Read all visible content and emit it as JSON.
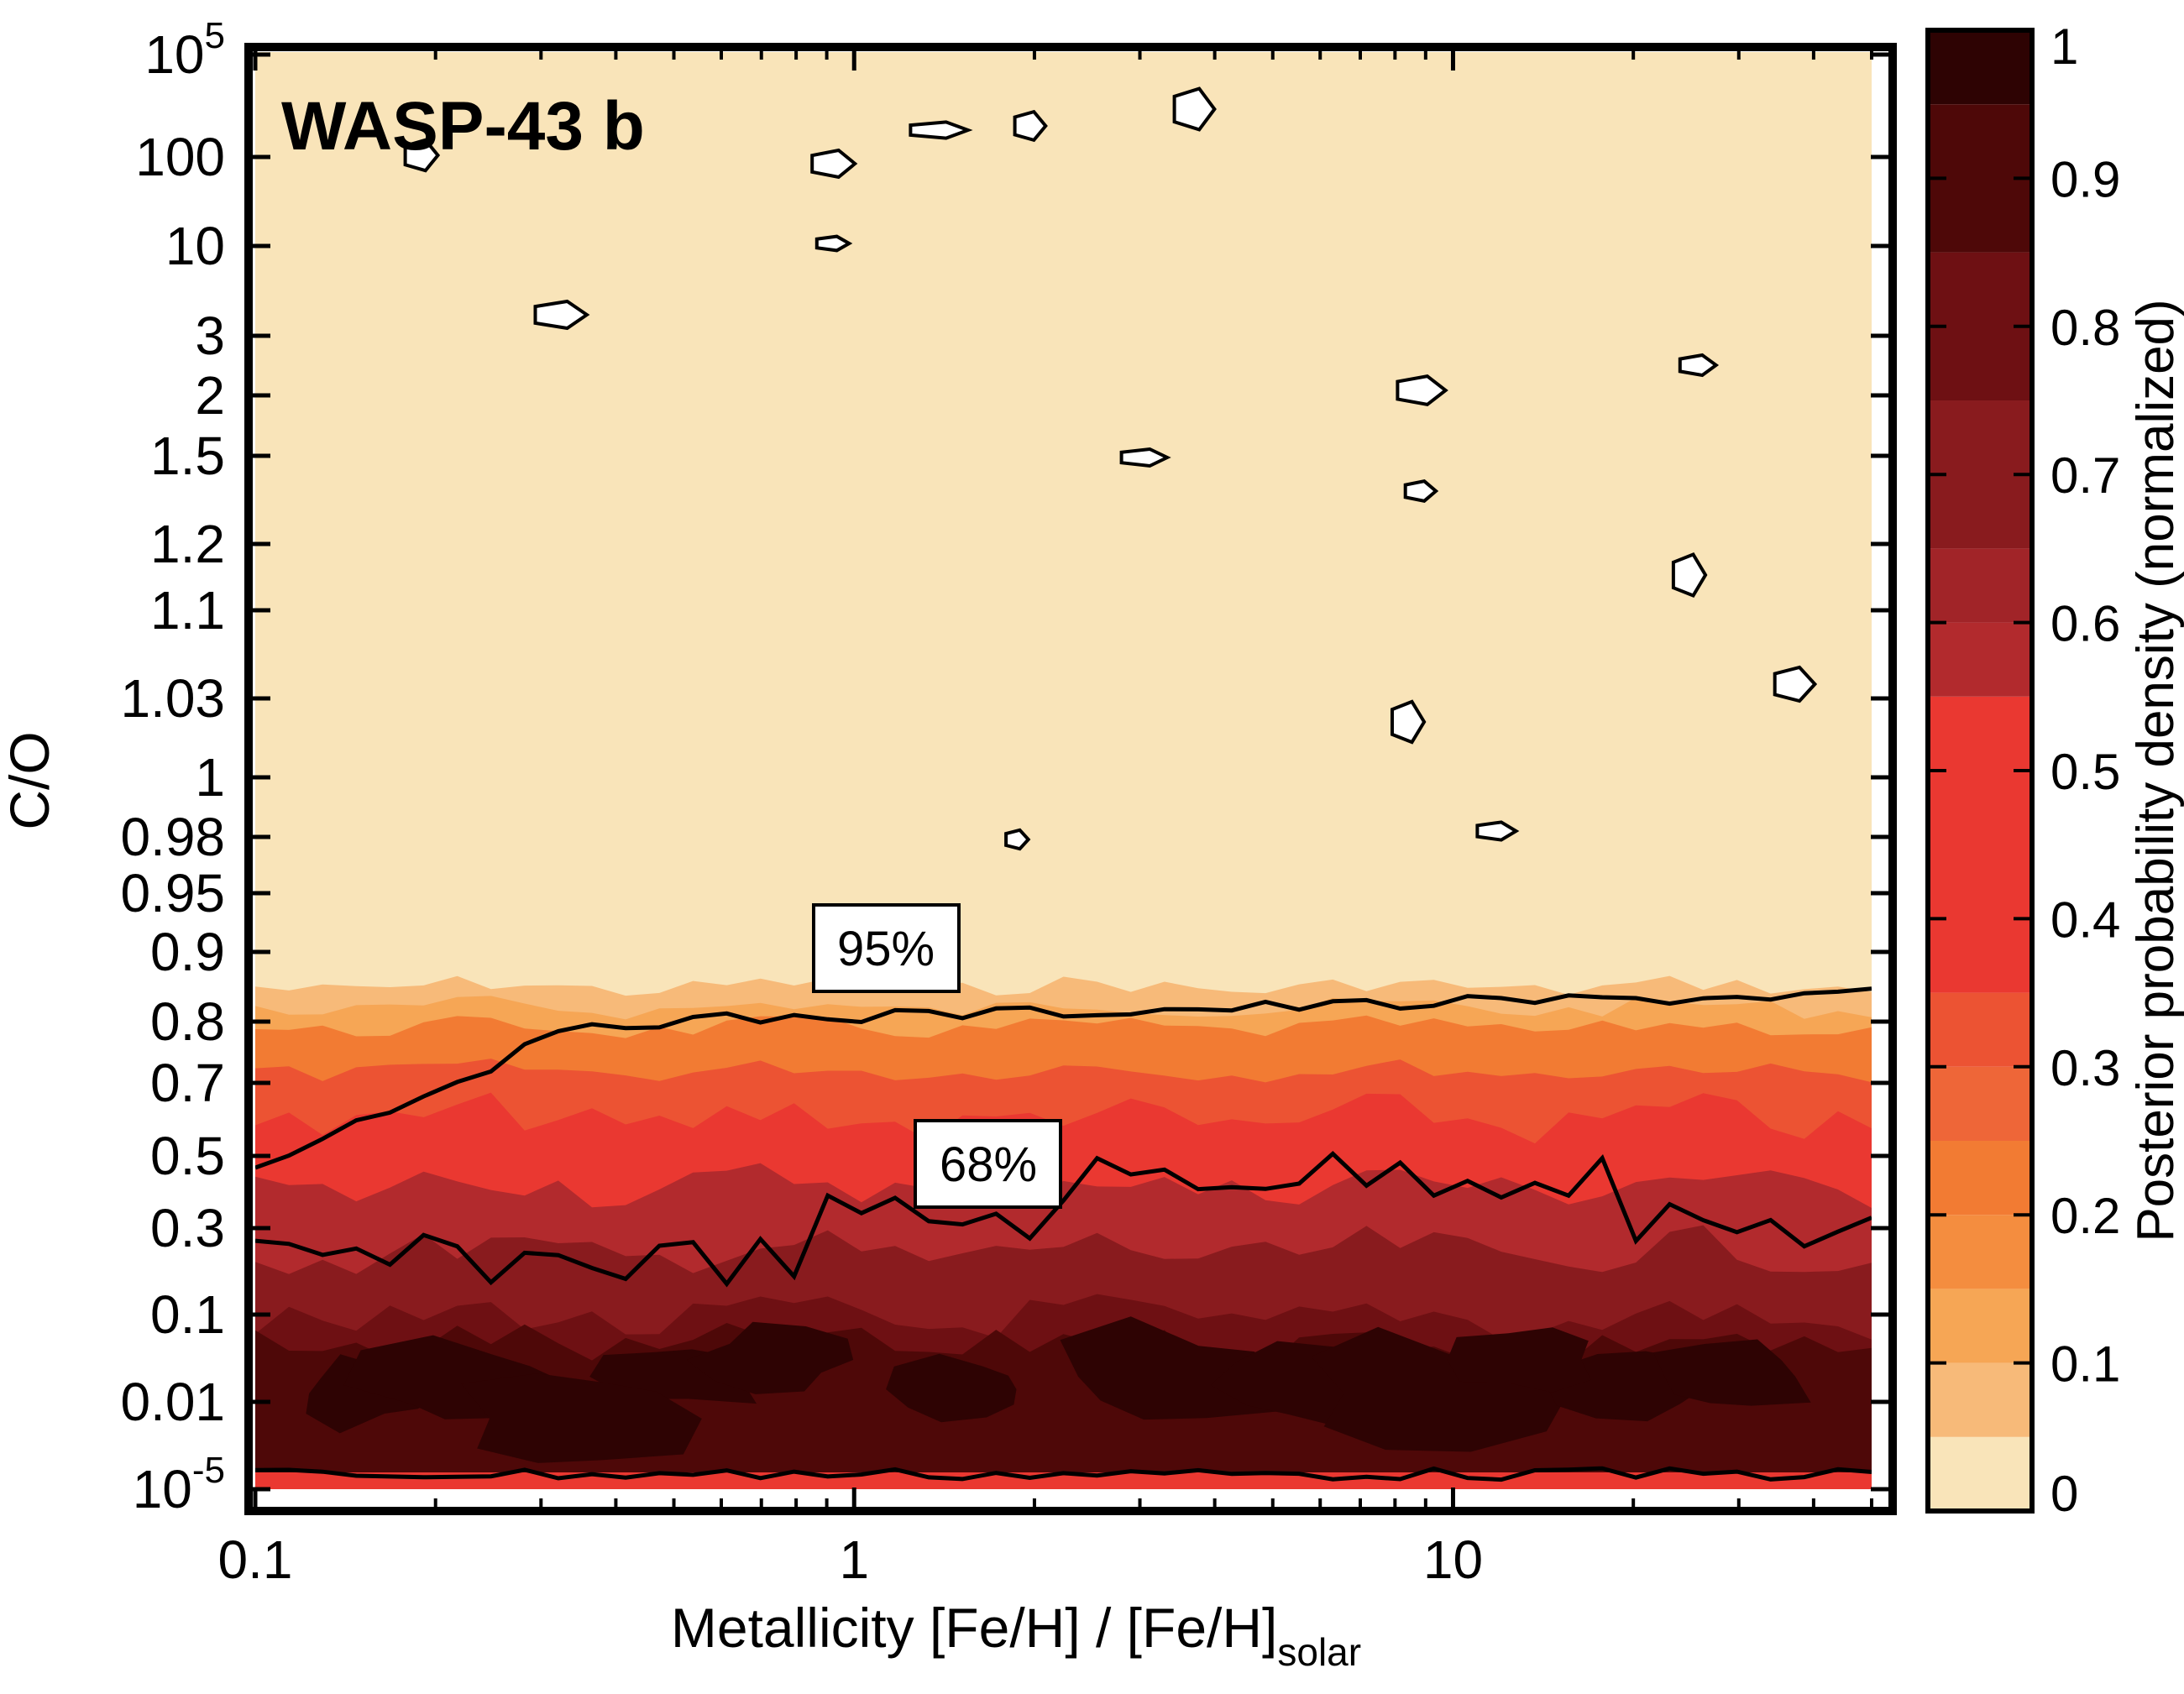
{
  "chart_data": {
    "type": "heatmap",
    "title": "WASP-43 b",
    "xlabel_main": "Metallicity [Fe/H] / [Fe/H]",
    "xlabel_sub": "solar",
    "ylabel": "C/O",
    "x_scale": "log",
    "xlim": [
      0.1,
      50
    ],
    "x_ticks": [
      {
        "value": 0.1,
        "label": "0.1"
      },
      {
        "value": 1,
        "label": "1"
      },
      {
        "value": 10,
        "label": "10"
      }
    ],
    "y_scale": "nonlinear (tick-indexed)",
    "y_ticks": [
      {
        "base": "10",
        "exp": "-5"
      },
      {
        "label": "0.01"
      },
      {
        "label": "0.1"
      },
      {
        "label": "0.3"
      },
      {
        "label": "0.5"
      },
      {
        "label": "0.7"
      },
      {
        "label": "0.8"
      },
      {
        "label": "0.9"
      },
      {
        "label": "0.95"
      },
      {
        "label": "0.98"
      },
      {
        "label": "1"
      },
      {
        "label": "1.03"
      },
      {
        "label": "1.1"
      },
      {
        "label": "1.2"
      },
      {
        "label": "1.5"
      },
      {
        "label": "2"
      },
      {
        "label": "3"
      },
      {
        "label": "10"
      },
      {
        "label": "100"
      },
      {
        "base": "10",
        "exp": "5"
      }
    ],
    "colorbar": {
      "title": "Posterior probability density (normalized)",
      "range": [
        0,
        1
      ],
      "ticks": [
        {
          "value": 0,
          "label": "0"
        },
        {
          "value": 0.1,
          "label": "0.1"
        },
        {
          "value": 0.2,
          "label": "0.2"
        },
        {
          "value": 0.3,
          "label": "0.3"
        },
        {
          "value": 0.4,
          "label": "0.4"
        },
        {
          "value": 0.5,
          "label": "0.5"
        },
        {
          "value": 0.6,
          "label": "0.6"
        },
        {
          "value": 0.7,
          "label": "0.7"
        },
        {
          "value": 0.8,
          "label": "0.8"
        },
        {
          "value": 0.9,
          "label": "0.9"
        },
        {
          "value": 1,
          "label": "1"
        }
      ],
      "levels": [
        {
          "from": 0.0,
          "to": 0.05,
          "color": "#f9e4b9"
        },
        {
          "from": 0.05,
          "to": 0.1,
          "color": "#f7ba79"
        },
        {
          "from": 0.1,
          "to": 0.15,
          "color": "#f6a655"
        },
        {
          "from": 0.15,
          "to": 0.2,
          "color": "#f48d3f"
        },
        {
          "from": 0.2,
          "to": 0.25,
          "color": "#f27b33"
        },
        {
          "from": 0.25,
          "to": 0.3,
          "color": "#ee6638"
        },
        {
          "from": 0.3,
          "to": 0.35,
          "color": "#ec5333"
        },
        {
          "from": 0.35,
          "to": 0.55,
          "color": "#ea3831"
        },
        {
          "from": 0.55,
          "to": 0.6,
          "color": "#b22a2d"
        },
        {
          "from": 0.6,
          "to": 0.65,
          "color": "#a12428"
        },
        {
          "from": 0.65,
          "to": 0.75,
          "color": "#891b1e"
        },
        {
          "from": 0.75,
          "to": 0.85,
          "color": "#6e1013"
        },
        {
          "from": 0.85,
          "to": 0.95,
          "color": "#4e0808"
        },
        {
          "from": 0.95,
          "to": 1.0,
          "color": "#2e0303"
        }
      ]
    },
    "credible_regions": [
      {
        "label": "95%",
        "approx_CO_boundary": 0.8
      },
      {
        "label": "68%",
        "approx_CO_boundary": 0.45
      }
    ],
    "bands": [
      {
        "co_from": 0.0,
        "co_to": 0.3,
        "density": 0.9
      },
      {
        "co_from": 0.3,
        "co_to": 0.45,
        "density": 0.7
      },
      {
        "co_from": 0.45,
        "co_to": 0.75,
        "density": 0.45
      },
      {
        "co_from": 0.75,
        "co_to": 0.8,
        "density": 0.3
      },
      {
        "co_from": 0.8,
        "co_to": 0.85,
        "density": 0.15
      },
      {
        "co_from": 0.85,
        "co_to": 100000,
        "density": 0.0
      }
    ]
  }
}
